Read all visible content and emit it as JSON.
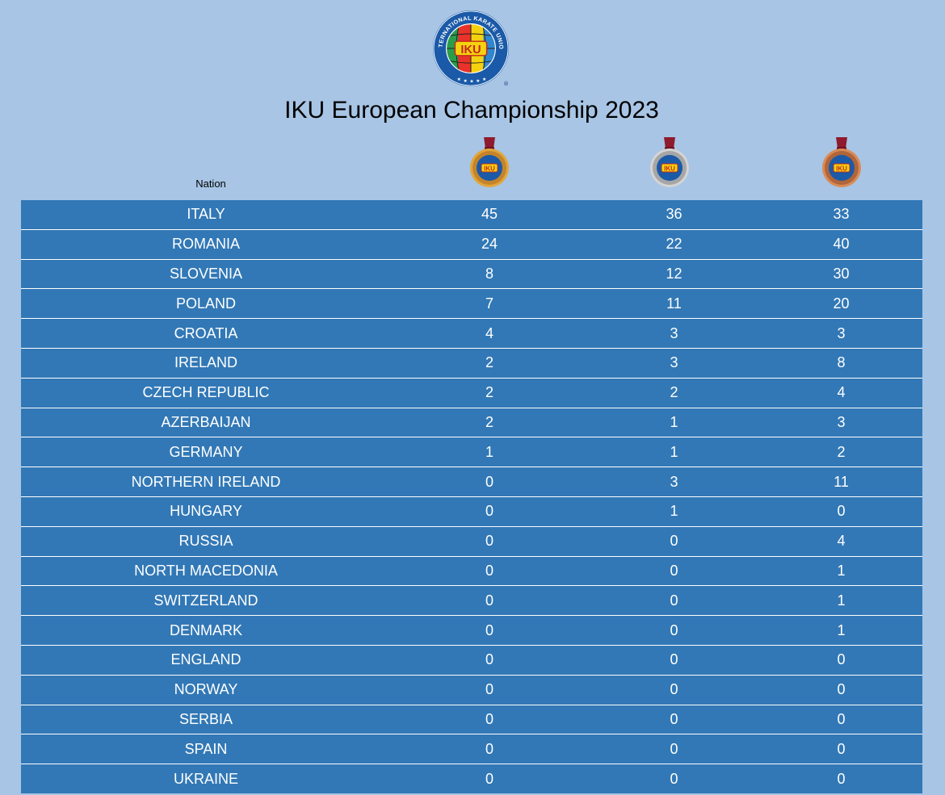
{
  "title": "IKU European Championship 2023",
  "logo": {
    "ring_text": "INTERNATIONAL KARATE UNION",
    "center_text": "IKU",
    "registered_mark": "®"
  },
  "header": {
    "nation": "Nation",
    "gold_icon": "gold-medal-icon",
    "silver_icon": "silver-medal-icon",
    "bronze_icon": "bronze-medal-icon"
  },
  "colors": {
    "background": "#a8c5e5",
    "row_background": "#3278b6",
    "row_text": "#ffffff"
  },
  "rows": [
    {
      "nation": "ITALY",
      "gold": "45",
      "silver": "36",
      "bronze": "33"
    },
    {
      "nation": "ROMANIA",
      "gold": "24",
      "silver": "22",
      "bronze": "40"
    },
    {
      "nation": "SLOVENIA",
      "gold": "8",
      "silver": "12",
      "bronze": "30"
    },
    {
      "nation": "POLAND",
      "gold": "7",
      "silver": "11",
      "bronze": "20"
    },
    {
      "nation": "CROATIA",
      "gold": "4",
      "silver": "3",
      "bronze": "3"
    },
    {
      "nation": "IRELAND",
      "gold": "2",
      "silver": "3",
      "bronze": "8"
    },
    {
      "nation": "CZECH REPUBLIC",
      "gold": "2",
      "silver": "2",
      "bronze": "4"
    },
    {
      "nation": "AZERBAIJAN",
      "gold": "2",
      "silver": "1",
      "bronze": "3"
    },
    {
      "nation": "GERMANY",
      "gold": "1",
      "silver": "1",
      "bronze": "2"
    },
    {
      "nation": "NORTHERN IRELAND",
      "gold": "0",
      "silver": "3",
      "bronze": "11"
    },
    {
      "nation": "HUNGARY",
      "gold": "0",
      "silver": "1",
      "bronze": "0"
    },
    {
      "nation": "RUSSIA",
      "gold": "0",
      "silver": "0",
      "bronze": "4"
    },
    {
      "nation": "NORTH MACEDONIA",
      "gold": "0",
      "silver": "0",
      "bronze": "1"
    },
    {
      "nation": "SWITZERLAND",
      "gold": "0",
      "silver": "0",
      "bronze": "1"
    },
    {
      "nation": "DENMARK",
      "gold": "0",
      "silver": "0",
      "bronze": "1"
    },
    {
      "nation": "ENGLAND",
      "gold": "0",
      "silver": "0",
      "bronze": "0"
    },
    {
      "nation": "NORWAY",
      "gold": "0",
      "silver": "0",
      "bronze": "0"
    },
    {
      "nation": "SERBIA",
      "gold": "0",
      "silver": "0",
      "bronze": "0"
    },
    {
      "nation": "SPAIN",
      "gold": "0",
      "silver": "0",
      "bronze": "0"
    },
    {
      "nation": "UKRAINE",
      "gold": "0",
      "silver": "0",
      "bronze": "0"
    }
  ]
}
